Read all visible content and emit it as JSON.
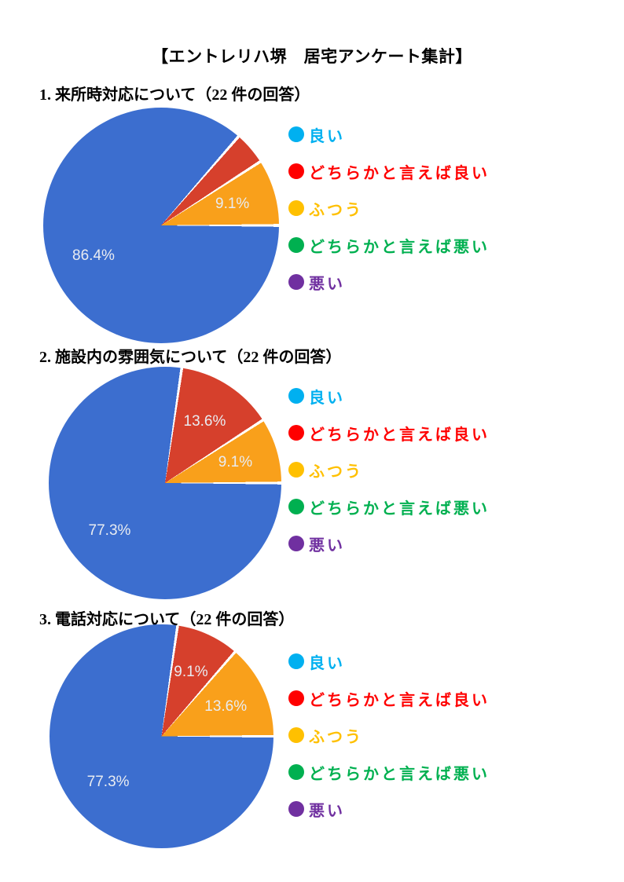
{
  "document": {
    "title": "【エントレリハ堺　居宅アンケート集計】"
  },
  "legend": {
    "items": [
      {
        "label": "良い",
        "color": "#00B0F0"
      },
      {
        "label": "どちらかと言えば良い",
        "color": "#FF0000"
      },
      {
        "label": "ふつう",
        "color": "#FFC000"
      },
      {
        "label": "どちらかと言えば悪い",
        "color": "#00B050"
      },
      {
        "label": "悪い",
        "color": "#7030A0"
      }
    ]
  },
  "chart_data": {
    "type": "pie",
    "legend_position": "right",
    "direction": "clockwise",
    "start_angle_css_deg": 90,
    "categories": [
      "良い",
      "どちらかと言えば良い",
      "ふつう",
      "どちらかと言えば悪い",
      "悪い"
    ],
    "slice_colors": [
      "#3C6ECF",
      "#D6402C",
      "#F9A01B"
    ],
    "slice_label_color": "#E9ECF1",
    "charts": [
      {
        "title": "1. 来所時対応について（22 件の回答）",
        "response_count": 22,
        "values": [
          86.4,
          4.5,
          9.1,
          0,
          0
        ],
        "slice_labels": [
          "86.4%",
          "",
          "9.1%",
          "",
          ""
        ]
      },
      {
        "title": "2. 施設内の雰囲気について（22 件の回答）",
        "response_count": 22,
        "values": [
          77.3,
          13.6,
          9.1,
          0,
          0
        ],
        "slice_labels": [
          "77.3%",
          "13.6%",
          "9.1%",
          "",
          ""
        ]
      },
      {
        "title": "3. 電話対応について（22 件の回答）",
        "response_count": 22,
        "values": [
          77.3,
          9.1,
          13.6,
          0,
          0
        ],
        "slice_labels": [
          "77.3%",
          "9.1%",
          "13.6%",
          "",
          ""
        ]
      }
    ]
  }
}
